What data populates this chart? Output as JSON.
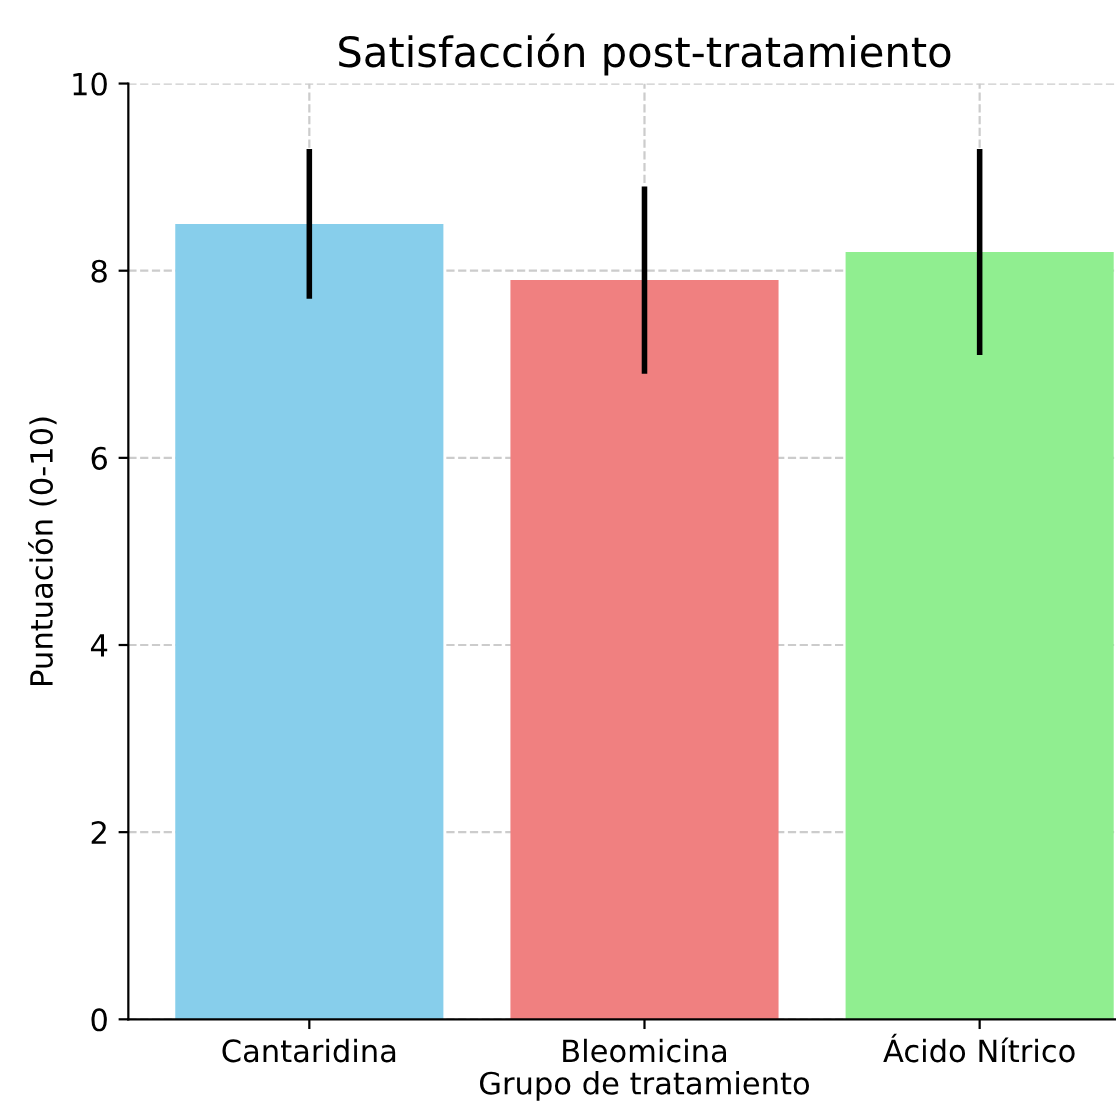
{
  "chart_data": {
    "type": "bar",
    "title": "Satisfacción post-tratamiento",
    "xlabel": "Grupo de tratamiento",
    "ylabel": "Puntuación (0-10)",
    "categories": [
      "Cantaridina",
      "Bleomicina",
      "Ácido Nítrico"
    ],
    "values": [
      8.5,
      7.9,
      8.2
    ],
    "errors": [
      0.8,
      1.0,
      1.1
    ],
    "colors": [
      "#87ceeb",
      "#f08080",
      "#90ee90"
    ],
    "ylim": [
      0,
      10
    ],
    "yticks": [
      0,
      2,
      4,
      6,
      8,
      10
    ],
    "grid": true
  }
}
